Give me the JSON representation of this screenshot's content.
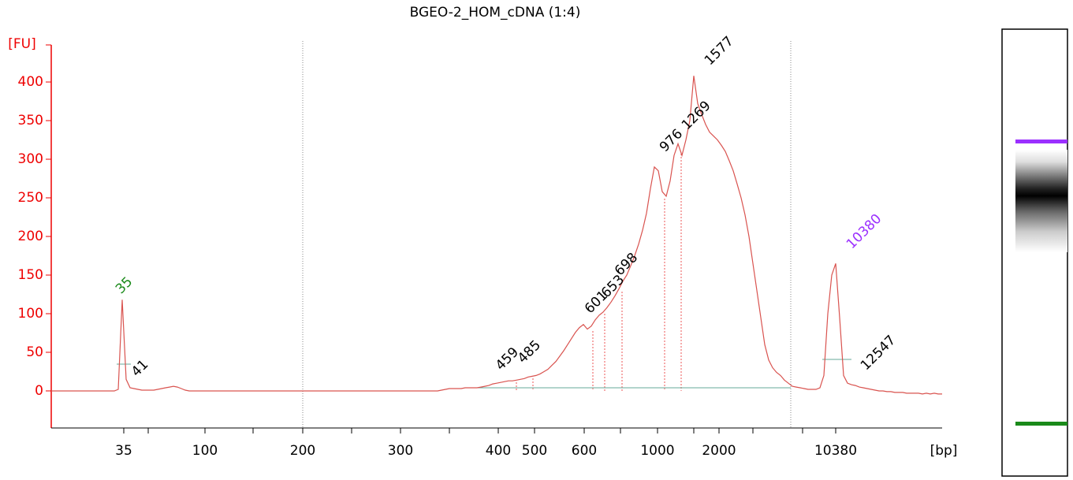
{
  "chart_data": {
    "type": "line",
    "title": "BGEO-2_HOM_cDNA (1:4)",
    "y_label": "[FU]",
    "x_label": "[bp]",
    "ylim": [
      -48,
      448
    ],
    "yticks": [
      0,
      50,
      100,
      150,
      200,
      250,
      300,
      350,
      400
    ],
    "x_tick_labels": [
      "35",
      "100",
      "200",
      "300",
      "400",
      "500",
      "600",
      "1000",
      "2000",
      "10380"
    ],
    "color": "#d9534f",
    "values": [
      0,
      0,
      0,
      0,
      0,
      0,
      0,
      0,
      0,
      0,
      0,
      0,
      0,
      0,
      0,
      0,
      0,
      2,
      118,
      15,
      4,
      3,
      2,
      1,
      1,
      1,
      1,
      2,
      3,
      4,
      5,
      6,
      5,
      3,
      1,
      0,
      0,
      0,
      0,
      0,
      0,
      0,
      0,
      0,
      0,
      0,
      0,
      0,
      0,
      0,
      0,
      0,
      0,
      0,
      0,
      0,
      0,
      0,
      0,
      0,
      0,
      0,
      0,
      0,
      0,
      0,
      0,
      0,
      0,
      0,
      0,
      0,
      0,
      0,
      0,
      0,
      0,
      0,
      0,
      0,
      0,
      0,
      0,
      0,
      0,
      0,
      0,
      0,
      0,
      0,
      0,
      0,
      0,
      0,
      0,
      0,
      0,
      0,
      0,
      1,
      2,
      3,
      3,
      3,
      3,
      4,
      4,
      4,
      4,
      5,
      6,
      7,
      9,
      10,
      11,
      12,
      13,
      13,
      14,
      15,
      16,
      18,
      19,
      20,
      22,
      25,
      28,
      33,
      38,
      45,
      52,
      60,
      68,
      76,
      82,
      86,
      80,
      84,
      92,
      98,
      102,
      108,
      115,
      123,
      132,
      142,
      150,
      162,
      175,
      190,
      208,
      230,
      262,
      290,
      285,
      258,
      252,
      272,
      305,
      320,
      305,
      325,
      350,
      408,
      372,
      358,
      345,
      335,
      330,
      325,
      318,
      310,
      298,
      285,
      268,
      250,
      228,
      200,
      165,
      130,
      95,
      60,
      40,
      30,
      24,
      20,
      14,
      10,
      6,
      5,
      4,
      3,
      2,
      2,
      2,
      4,
      20,
      100,
      150,
      165,
      95,
      20,
      10,
      8,
      7,
      5,
      4,
      3,
      2,
      1,
      0,
      0,
      -1,
      -1,
      -2,
      -2,
      -2,
      -3,
      -3,
      -3,
      -3,
      -4,
      -3,
      -4,
      -3,
      -4,
      -4
    ],
    "peaks": [
      {
        "label": "35",
        "color": "#1a8a1a"
      },
      {
        "label": "41",
        "color": "#000000"
      },
      {
        "label": "459",
        "color": "#000000"
      },
      {
        "label": "485",
        "color": "#000000"
      },
      {
        "label": "601",
        "color": "#000000"
      },
      {
        "label": "653",
        "color": "#000000"
      },
      {
        "label": "698",
        "color": "#000000"
      },
      {
        "label": "976",
        "color": "#000000"
      },
      {
        "label": "1269",
        "color": "#000000"
      },
      {
        "label": "1577",
        "color": "#000000"
      },
      {
        "label": "10380",
        "color": "#9b30ff"
      },
      {
        "label": "12547",
        "color": "#000000"
      }
    ]
  }
}
